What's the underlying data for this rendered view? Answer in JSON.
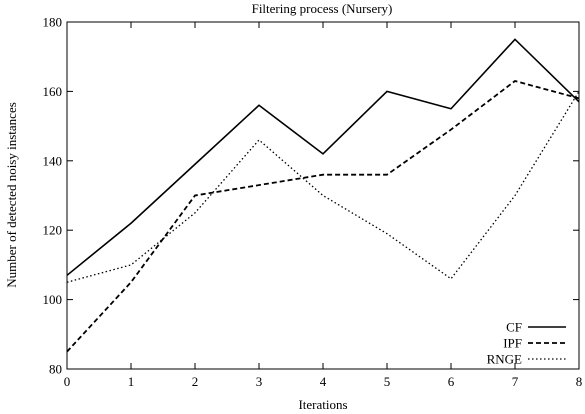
{
  "chart_data": {
    "type": "line",
    "title": "Filtering process (Nursery)",
    "xlabel": "Iterations",
    "ylabel": "Number of detected noisy instances",
    "x": [
      0,
      1,
      2,
      3,
      4,
      5,
      6,
      7,
      8
    ],
    "xlim": [
      0,
      8
    ],
    "ylim": [
      80,
      180
    ],
    "xticks": [
      "0",
      "1",
      "2",
      "3",
      "4",
      "5",
      "6",
      "7",
      "8"
    ],
    "yticks": [
      "80",
      "100",
      "120",
      "140",
      "160",
      "180"
    ],
    "grid": false,
    "legend_position": "bottom-right",
    "series": [
      {
        "name": "CF",
        "style": "solid",
        "values": [
          107,
          122,
          139,
          156,
          142,
          160,
          155,
          175,
          157
        ]
      },
      {
        "name": "IPF",
        "style": "dashed",
        "values": [
          85,
          105,
          130,
          133,
          136,
          136,
          149,
          163,
          158
        ]
      },
      {
        "name": "RNGE",
        "style": "dotted",
        "values": [
          105,
          110,
          125,
          146,
          130,
          119,
          106,
          130,
          160
        ]
      }
    ]
  }
}
